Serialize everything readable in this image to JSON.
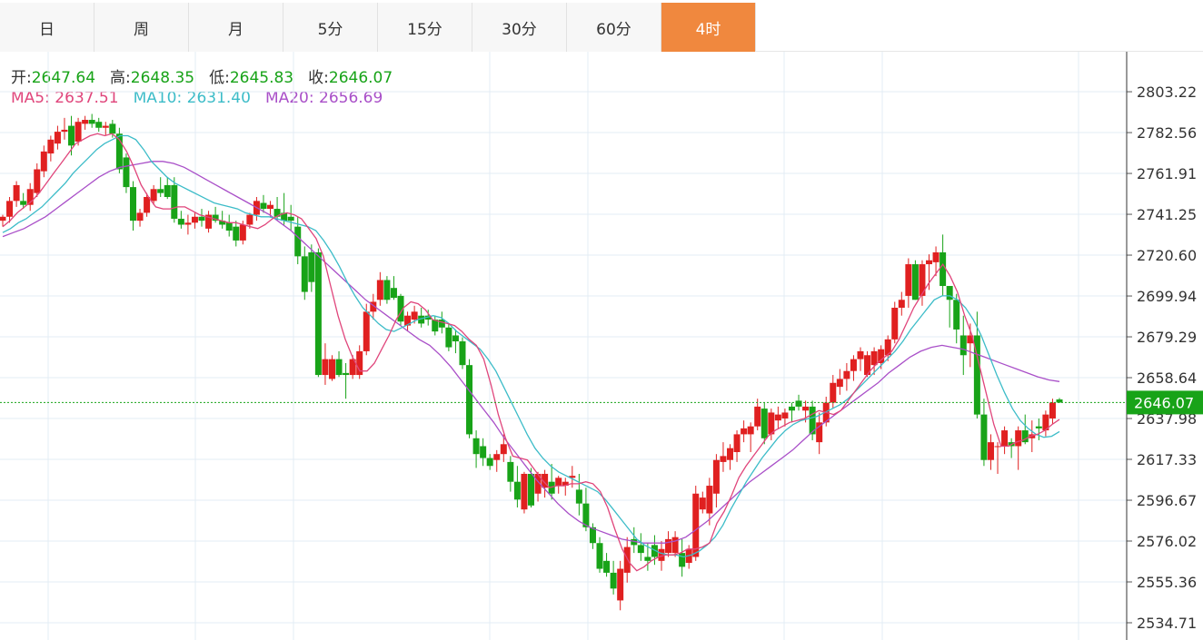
{
  "tabs": [
    {
      "label": "日",
      "active": false
    },
    {
      "label": "周",
      "active": false
    },
    {
      "label": "月",
      "active": false
    },
    {
      "label": "5分",
      "active": false
    },
    {
      "label": "15分",
      "active": false
    },
    {
      "label": "30分",
      "active": false
    },
    {
      "label": "60分",
      "active": false
    },
    {
      "label": "4时",
      "active": true
    }
  ],
  "info": {
    "open_label": "开:",
    "open": "2647.64",
    "high_label": "高:",
    "high": "2648.35",
    "low_label": "低:",
    "low": "2645.83",
    "close_label": "收:",
    "close": "2646.07",
    "ma5_label": "MA5: ",
    "ma5": "2637.51",
    "ma10_label": "MA10: ",
    "ma10": "2631.40",
    "ma20_label": "MA20: ",
    "ma20": "2656.69"
  },
  "colors": {
    "up": "#e02020",
    "down": "#18a318",
    "ma5": "#e0457b",
    "ma10": "#3cbcc8",
    "ma20": "#a94fc8",
    "grid": "#e3ecf4",
    "current_price": "#18a318",
    "active_tab": "#f0883e"
  },
  "chart_data": {
    "type": "candlestick",
    "current_price": 2646.07,
    "y_ticks": [
      "2803.22",
      "2782.56",
      "2761.91",
      "2741.25",
      "2720.60",
      "2699.94",
      "2679.29",
      "2658.64",
      "2637.98",
      "2617.33",
      "2596.67",
      "2576.02",
      "2555.36",
      "2534.71"
    ],
    "ylim": [
      2530,
      2812
    ],
    "candles": [
      [
        2738,
        2741,
        2735,
        2740
      ],
      [
        2740,
        2750,
        2737,
        2748
      ],
      [
        2748,
        2758,
        2745,
        2756
      ],
      [
        2748,
        2752,
        2744,
        2746
      ],
      [
        2746,
        2757,
        2743,
        2754
      ],
      [
        2752,
        2767,
        2750,
        2764
      ],
      [
        2763,
        2776,
        2760,
        2773
      ],
      [
        2772,
        2781,
        2768,
        2779
      ],
      [
        2777,
        2786,
        2774,
        2783
      ],
      [
        2783,
        2790,
        2779,
        2784
      ],
      [
        2786,
        2791,
        2771,
        2776
      ],
      [
        2778,
        2790,
        2776,
        2788
      ],
      [
        2787,
        2791,
        2784,
        2789
      ],
      [
        2789,
        2792,
        2785,
        2787
      ],
      [
        2788,
        2790,
        2783,
        2785
      ],
      [
        2785,
        2788,
        2781,
        2786
      ],
      [
        2787,
        2789,
        2780,
        2782
      ],
      [
        2782,
        2785,
        2762,
        2764
      ],
      [
        2770,
        2772,
        2752,
        2755
      ],
      [
        2755,
        2758,
        2733,
        2738
      ],
      [
        2738,
        2744,
        2735,
        2742
      ],
      [
        2742,
        2752,
        2740,
        2750
      ],
      [
        2748,
        2756,
        2746,
        2754
      ],
      [
        2754,
        2760,
        2750,
        2752
      ],
      [
        2756,
        2760,
        2749,
        2750
      ],
      [
        2756,
        2760,
        2737,
        2739
      ],
      [
        2739,
        2743,
        2734,
        2736
      ],
      [
        2736,
        2741,
        2731,
        2737
      ],
      [
        2737,
        2742,
        2734,
        2740
      ],
      [
        2740,
        2744,
        2735,
        2738
      ],
      [
        2734,
        2743,
        2732,
        2741
      ],
      [
        2741,
        2745,
        2737,
        2738
      ],
      [
        2738,
        2743,
        2734,
        2736
      ],
      [
        2737,
        2741,
        2730,
        2733
      ],
      [
        2735,
        2738,
        2725,
        2728
      ],
      [
        2728,
        2738,
        2726,
        2736
      ],
      [
        2736,
        2742,
        2734,
        2741
      ],
      [
        2741,
        2750,
        2738,
        2748
      ],
      [
        2747,
        2751,
        2742,
        2744
      ],
      [
        2744,
        2748,
        2740,
        2746
      ],
      [
        2744,
        2750,
        2738,
        2740
      ],
      [
        2742,
        2752,
        2736,
        2738
      ],
      [
        2740,
        2746,
        2733,
        2738
      ],
      [
        2735,
        2740,
        2716,
        2720
      ],
      [
        2720,
        2725,
        2698,
        2702
      ],
      [
        2722,
        2726,
        2702,
        2707
      ],
      [
        2722,
        2724,
        2659,
        2660
      ],
      [
        2660,
        2676,
        2655,
        2668
      ],
      [
        2658,
        2670,
        2657,
        2668
      ],
      [
        2668,
        2672,
        2659,
        2660
      ],
      [
        2661,
        2666,
        2648,
        2660
      ],
      [
        2660,
        2670,
        2658,
        2668
      ],
      [
        2660,
        2675,
        2658,
        2672
      ],
      [
        2672,
        2696,
        2670,
        2692
      ],
      [
        2692,
        2701,
        2688,
        2697
      ],
      [
        2698,
        2712,
        2695,
        2708
      ],
      [
        2708,
        2710,
        2696,
        2698
      ],
      [
        2704,
        2710,
        2698,
        2699
      ],
      [
        2700,
        2701,
        2685,
        2687
      ],
      [
        2685,
        2692,
        2682,
        2690
      ],
      [
        2688,
        2695,
        2686,
        2692
      ],
      [
        2690,
        2694,
        2684,
        2686
      ],
      [
        2690,
        2693,
        2685,
        2688
      ],
      [
        2688,
        2690,
        2680,
        2682
      ],
      [
        2688,
        2692,
        2681,
        2684
      ],
      [
        2684,
        2686,
        2672,
        2674
      ],
      [
        2680,
        2683,
        2671,
        2677
      ],
      [
        2677,
        2679,
        2663,
        2665
      ],
      [
        2665,
        2668,
        2628,
        2630
      ],
      [
        2628,
        2632,
        2613,
        2620
      ],
      [
        2624,
        2628,
        2614,
        2618
      ],
      [
        2618,
        2620,
        2612,
        2614
      ],
      [
        2617,
        2622,
        2611,
        2620
      ],
      [
        2620,
        2630,
        2616,
        2625
      ],
      [
        2616,
        2619,
        2601,
        2606
      ],
      [
        2606,
        2614,
        2593,
        2597
      ],
      [
        2592,
        2611,
        2590,
        2610
      ],
      [
        2610,
        2613,
        2593,
        2594
      ],
      [
        2600,
        2611,
        2596,
        2610
      ],
      [
        2603,
        2612,
        2598,
        2610
      ],
      [
        2606,
        2615,
        2597,
        2600
      ],
      [
        2604,
        2609,
        2600,
        2608
      ],
      [
        2604,
        2608,
        2599,
        2606
      ],
      [
        2608,
        2614,
        2603,
        2609
      ],
      [
        2602,
        2610,
        2589,
        2595
      ],
      [
        2595,
        2603,
        2581,
        2583
      ],
      [
        2583,
        2585,
        2572,
        2575
      ],
      [
        2575,
        2578,
        2560,
        2562
      ],
      [
        2566,
        2570,
        2558,
        2560
      ],
      [
        2560,
        2566,
        2549,
        2552
      ],
      [
        2546,
        2566,
        2541,
        2562
      ],
      [
        2560,
        2578,
        2555,
        2573
      ],
      [
        2577,
        2583,
        2570,
        2574
      ],
      [
        2574,
        2580,
        2566,
        2570
      ],
      [
        2568,
        2575,
        2561,
        2566
      ],
      [
        2574,
        2579,
        2564,
        2568
      ],
      [
        2566,
        2576,
        2561,
        2572
      ],
      [
        2570,
        2581,
        2568,
        2577
      ],
      [
        2570,
        2581,
        2568,
        2578
      ],
      [
        2570,
        2577,
        2558,
        2563
      ],
      [
        2565,
        2574,
        2562,
        2572
      ],
      [
        2568,
        2604,
        2566,
        2600
      ],
      [
        2592,
        2601,
        2590,
        2598
      ],
      [
        2590,
        2608,
        2584,
        2604
      ],
      [
        2600,
        2620,
        2593,
        2617
      ],
      [
        2616,
        2626,
        2611,
        2619
      ],
      [
        2617,
        2625,
        2612,
        2623
      ],
      [
        2621,
        2632,
        2616,
        2630
      ],
      [
        2630,
        2637,
        2626,
        2633
      ],
      [
        2630,
        2636,
        2621,
        2634
      ],
      [
        2634,
        2648,
        2632,
        2644
      ],
      [
        2643,
        2646,
        2625,
        2628
      ],
      [
        2630,
        2643,
        2627,
        2641
      ],
      [
        2637,
        2644,
        2633,
        2640
      ],
      [
        2638,
        2643,
        2634,
        2641
      ],
      [
        2644,
        2646,
        2636,
        2642
      ],
      [
        2647,
        2650,
        2642,
        2644
      ],
      [
        2642,
        2647,
        2636,
        2644
      ],
      [
        2644,
        2647,
        2627,
        2630
      ],
      [
        2626,
        2641,
        2620,
        2636
      ],
      [
        2636,
        2649,
        2634,
        2646
      ],
      [
        2646,
        2660,
        2643,
        2656
      ],
      [
        2654,
        2663,
        2650,
        2658
      ],
      [
        2658,
        2666,
        2652,
        2662
      ],
      [
        2662,
        2670,
        2657,
        2668
      ],
      [
        2668,
        2674,
        2662,
        2672
      ],
      [
        2660,
        2672,
        2659,
        2670
      ],
      [
        2665,
        2674,
        2660,
        2672
      ],
      [
        2666,
        2675,
        2663,
        2673
      ],
      [
        2670,
        2680,
        2667,
        2678
      ],
      [
        2678,
        2697,
        2676,
        2694
      ],
      [
        2694,
        2702,
        2690,
        2698
      ],
      [
        2700,
        2719,
        2694,
        2716
      ],
      [
        2716,
        2718,
        2698,
        2698
      ],
      [
        2700,
        2718,
        2695,
        2716
      ],
      [
        2716,
        2721,
        2703,
        2718
      ],
      [
        2717,
        2725,
        2710,
        2722
      ],
      [
        2722,
        2731,
        2700,
        2705
      ],
      [
        2705,
        2705,
        2684,
        2698
      ],
      [
        2698,
        2701,
        2676,
        2683
      ],
      [
        2680,
        2690,
        2660,
        2670
      ],
      [
        2676,
        2686,
        2664,
        2680
      ],
      [
        2680,
        2692,
        2638,
        2640
      ],
      [
        2640,
        2648,
        2614,
        2617
      ],
      [
        2617,
        2630,
        2612,
        2626
      ],
      [
        2624,
        2626,
        2610,
        2624
      ],
      [
        2624,
        2634,
        2620,
        2632
      ],
      [
        2626,
        2628,
        2618,
        2624
      ],
      [
        2624,
        2634,
        2612,
        2632
      ],
      [
        2632,
        2640,
        2625,
        2626
      ],
      [
        2628,
        2637,
        2621,
        2630
      ],
      [
        2634,
        2638,
        2627,
        2633
      ],
      [
        2632,
        2642,
        2629,
        2640
      ],
      [
        2638,
        2648,
        2635,
        2646
      ],
      [
        2647.64,
        2648.35,
        2645.83,
        2646.07
      ]
    ],
    "ma5": [
      2735,
      2738,
      2742,
      2745,
      2748,
      2752,
      2757,
      2762,
      2767,
      2772,
      2777,
      2779,
      2781,
      2782,
      2781,
      2782,
      2779,
      2773,
      2765,
      2756,
      2750,
      2745,
      2744,
      2744,
      2745,
      2745,
      2743,
      2741,
      2740,
      2739,
      2738,
      2737,
      2737,
      2736,
      2735,
      2734,
      2736,
      2739,
      2741,
      2742,
      2741,
      2739,
      2734,
      2729,
      2720,
      2705,
      2690,
      2678,
      2669,
      2662,
      2662,
      2666,
      2673,
      2680,
      2688,
      2694,
      2697,
      2696,
      2693,
      2688,
      2687,
      2686,
      2685,
      2682,
      2678,
      2675,
      2668,
      2655,
      2640,
      2628,
      2619,
      2618,
      2617,
      2612,
      2607,
      2603,
      2604,
      2604,
      2605,
      2605,
      2606,
      2605,
      2601,
      2593,
      2582,
      2572,
      2565,
      2561,
      2563,
      2566,
      2568,
      2569,
      2569,
      2570,
      2572,
      2572,
      2573,
      2575,
      2585,
      2591,
      2599,
      2608,
      2614,
      2619,
      2624,
      2629,
      2632,
      2634,
      2636,
      2637,
      2638,
      2640,
      2642,
      2641,
      2640,
      2642,
      2647,
      2652,
      2657,
      2662,
      2666,
      2669,
      2672,
      2678,
      2686,
      2694,
      2700,
      2706,
      2711,
      2716,
      2710,
      2702,
      2690,
      2680,
      2665,
      2650,
      2635,
      2624,
      2624,
      2626,
      2627,
      2629,
      2630,
      2632,
      2635,
      2637.51
    ],
    "ma10": [
      2732,
      2734,
      2737,
      2739,
      2742,
      2745,
      2749,
      2753,
      2757,
      2762,
      2766,
      2770,
      2774,
      2777,
      2779,
      2781,
      2781,
      2779,
      2774,
      2768,
      2764,
      2760,
      2757,
      2755,
      2753,
      2751,
      2749,
      2747,
      2746,
      2745,
      2744,
      2742,
      2741,
      2740,
      2740,
      2739,
      2738,
      2737,
      2736,
      2735,
      2733,
      2728,
      2722,
      2715,
      2707,
      2700,
      2694,
      2690,
      2686,
      2683,
      2682,
      2684,
      2686,
      2688,
      2689,
      2690,
      2689,
      2686,
      2682,
      2679,
      2676,
      2673,
      2668,
      2662,
      2654,
      2646,
      2638,
      2630,
      2623,
      2618,
      2614,
      2611,
      2609,
      2607,
      2605,
      2603,
      2601,
      2597,
      2592,
      2587,
      2582,
      2577,
      2574,
      2572,
      2570,
      2569,
      2569,
      2568,
      2569,
      2571,
      2574,
      2578,
      2584,
      2592,
      2599,
      2606,
      2612,
      2618,
      2623,
      2628,
      2632,
      2635,
      2637,
      2638,
      2639,
      2641,
      2643,
      2645,
      2648,
      2652,
      2656,
      2660,
      2664,
      2668,
      2672,
      2677,
      2683,
      2688,
      2693,
      2698,
      2700,
      2700,
      2698,
      2694,
      2688,
      2680,
      2670,
      2660,
      2651,
      2643,
      2637,
      2633,
      2630,
      2628.5,
      2629,
      2631.4
    ],
    "ma20": [
      2730,
      2732,
      2734,
      2737,
      2740,
      2744,
      2748,
      2752,
      2756,
      2760,
      2763,
      2765,
      2766,
      2767,
      2768,
      2768,
      2767,
      2765,
      2762,
      2759,
      2756,
      2753,
      2750,
      2747,
      2744,
      2741,
      2737,
      2733,
      2728,
      2723,
      2718,
      2713,
      2708,
      2703,
      2698,
      2694,
      2690,
      2686,
      2682,
      2678,
      2675,
      2670,
      2664,
      2657,
      2650,
      2643,
      2636,
      2628,
      2621,
      2614,
      2607,
      2601,
      2595,
      2590,
      2586,
      2583,
      2581,
      2579,
      2577,
      2576,
      2575,
      2575,
      2575,
      2576,
      2578,
      2582,
      2586,
      2591,
      2596,
      2601,
      2606,
      2610,
      2614,
      2618,
      2622,
      2627,
      2632,
      2636,
      2640,
      2644,
      2648,
      2652,
      2656,
      2661,
      2665,
      2669,
      2672,
      2674,
      2675,
      2674,
      2673,
      2671,
      2669,
      2667,
      2665,
      2663,
      2661,
      2659,
      2657.5,
      2656.69
    ]
  }
}
